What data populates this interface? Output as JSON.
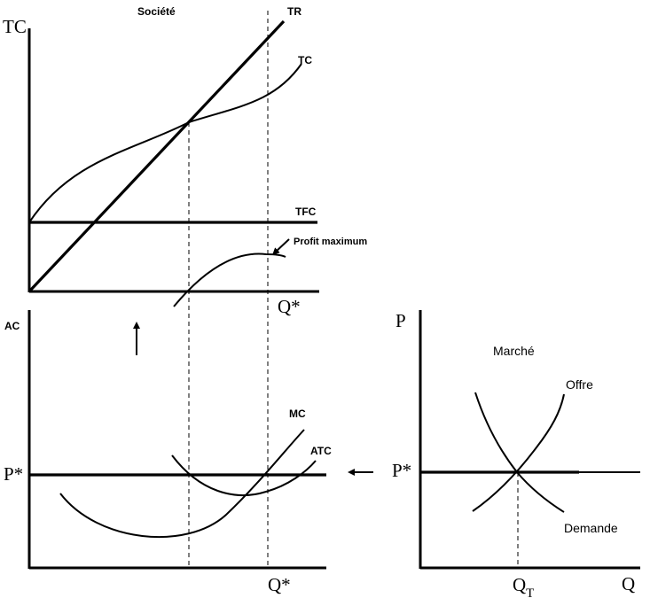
{
  "top_panel": {
    "title": "Société",
    "y_axis_label": "TC",
    "x_axis_label": "Q*",
    "curves": {
      "tr": "TR",
      "tc": "TC",
      "tfc": "TFC"
    },
    "annotation": "Profit maximum"
  },
  "bottom_left_panel": {
    "y_axis_label": "AC",
    "price_label": "P*",
    "x_axis_label": "Q*",
    "curves": {
      "mc": "MC",
      "atc": "ATC"
    }
  },
  "bottom_right_panel": {
    "title": "Marché",
    "y_axis_label": "P",
    "x_axis_label": "Q",
    "price_label": "P*",
    "quantity_label": "Q",
    "quantity_subscript": "T",
    "curves": {
      "supply": "Offre",
      "demand": "Demande"
    }
  },
  "arrows": {
    "up": "up-arrow-icon",
    "left": "left-arrow-icon"
  }
}
